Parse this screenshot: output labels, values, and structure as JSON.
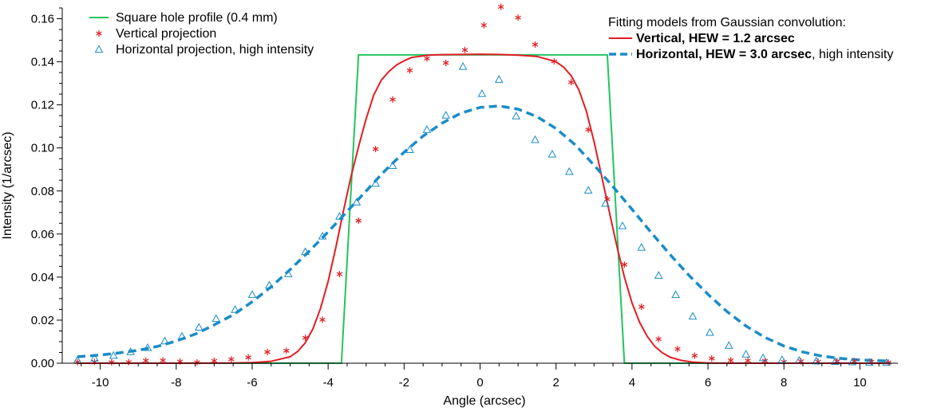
{
  "chart_data": {
    "type": "line",
    "xlabel": "Angle (arcsec)",
    "ylabel": "Intensity (1/arcsec)",
    "xlim": [
      -11.0,
      11.0
    ],
    "ylim": [
      0.0,
      0.165
    ],
    "x_major_ticks": [
      -10,
      -8,
      -6,
      -4,
      -2,
      0,
      2,
      4,
      6,
      8,
      10
    ],
    "y_major_ticks": [
      0.0,
      0.02,
      0.04,
      0.06,
      0.08,
      0.1,
      0.12,
      0.14,
      0.16
    ],
    "x_tick_labels": [
      "-10",
      "-8",
      "-6",
      "-4",
      "-2",
      "0",
      "2",
      "4",
      "6",
      "8",
      "10"
    ],
    "y_tick_labels": [
      "0.00",
      "0.02",
      "0.04",
      "0.06",
      "0.08",
      "0.10",
      "0.12",
      "0.14",
      "0.16"
    ],
    "colors": {
      "square": "#22c55e",
      "vertical": "#e11d24",
      "horizontal": "#1a8cc8"
    },
    "legend_left": {
      "placement": "top-left",
      "entries": [
        {
          "label": "Square hole profile (0.4 mm)",
          "marker": "line",
          "color": "#22c55e"
        },
        {
          "label": "Vertical projection",
          "marker": "asterisk",
          "color": "#e11d24"
        },
        {
          "label": "Horizontal projection, high intensity",
          "marker": "triangle",
          "color": "#1a8cc8"
        }
      ]
    },
    "legend_right": {
      "placement": "top-right",
      "title": "Fitting models from Gaussian convolution:",
      "entries": [
        {
          "bold": "Vertical, HEW = 1.2 arcsec",
          "rest": "",
          "style": "solid",
          "color": "#e11d24"
        },
        {
          "bold": "Horizontal, HEW = 3.0 arcsec",
          "rest": ", high intensity",
          "style": "dashed",
          "color": "#1a8cc8"
        }
      ]
    },
    "series": [
      {
        "name": "Square hole profile (0.4 mm)",
        "kind": "line",
        "x": [
          -10.6,
          -3.65,
          -3.2,
          3.35,
          3.8,
          10.8
        ],
        "y": [
          0.0,
          0.0,
          0.1432,
          0.1432,
          0.0,
          0.0
        ]
      },
      {
        "name": "Vertical, HEW = 1.2 arcsec",
        "kind": "line",
        "x": [
          -10.6,
          -8.0,
          -6.5,
          -6.0,
          -5.5,
          -5.0,
          -4.8,
          -4.6,
          -4.4,
          -4.2,
          -4.0,
          -3.8,
          -3.6,
          -3.4,
          -3.2,
          -3.0,
          -2.8,
          -2.6,
          -2.4,
          -2.2,
          -2.0,
          -1.8,
          -1.6,
          -1.4,
          -1.2,
          -1.0,
          -0.5,
          0.0,
          0.5,
          1.0,
          1.5,
          2.0,
          2.2,
          2.4,
          2.6,
          2.8,
          3.0,
          3.2,
          3.4,
          3.6,
          3.8,
          4.0,
          4.2,
          4.4,
          4.6,
          4.8,
          5.0,
          5.3,
          5.6,
          6.0,
          6.5,
          7.0,
          8.0,
          9.0,
          10.8
        ],
        "y": [
          0.0,
          0.0,
          0.0001,
          0.0003,
          0.0009,
          0.003,
          0.0055,
          0.0095,
          0.016,
          0.0255,
          0.038,
          0.0535,
          0.0705,
          0.0865,
          0.1005,
          0.1135,
          0.1245,
          0.1315,
          0.1355,
          0.1385,
          0.1405,
          0.142,
          0.1425,
          0.143,
          0.1432,
          0.1433,
          0.1434,
          0.1435,
          0.1434,
          0.1431,
          0.1425,
          0.14,
          0.1375,
          0.1335,
          0.127,
          0.117,
          0.103,
          0.087,
          0.0705,
          0.0545,
          0.04,
          0.028,
          0.019,
          0.0125,
          0.0078,
          0.0048,
          0.0028,
          0.0013,
          0.0005,
          0.0001,
          0.0,
          0.0,
          0.0,
          0.0,
          0.0
        ]
      },
      {
        "name": "Horizontal, HEW = 3.0 arcsec",
        "kind": "dashed",
        "x": [
          -10.6,
          -10.0,
          -9.5,
          -9.0,
          -8.5,
          -8.0,
          -7.5,
          -7.0,
          -6.5,
          -6.0,
          -5.5,
          -5.0,
          -4.5,
          -4.0,
          -3.5,
          -3.0,
          -2.5,
          -2.0,
          -1.5,
          -1.0,
          -0.5,
          0.0,
          0.5,
          1.0,
          1.5,
          2.0,
          2.5,
          3.0,
          3.5,
          4.0,
          4.5,
          5.0,
          5.5,
          6.0,
          6.5,
          7.0,
          7.5,
          8.0,
          8.5,
          9.0,
          9.5,
          10.0,
          10.8
        ],
        "y": [
          0.003,
          0.0038,
          0.0048,
          0.006,
          0.0078,
          0.0103,
          0.0135,
          0.0178,
          0.0225,
          0.0285,
          0.0355,
          0.0435,
          0.052,
          0.061,
          0.0705,
          0.08,
          0.0895,
          0.098,
          0.1055,
          0.1115,
          0.1162,
          0.1188,
          0.1195,
          0.118,
          0.1145,
          0.109,
          0.1015,
          0.092,
          0.082,
          0.0715,
          0.0608,
          0.0505,
          0.0408,
          0.032,
          0.024,
          0.0173,
          0.012,
          0.008,
          0.0052,
          0.0033,
          0.0022,
          0.0015,
          0.001
        ]
      },
      {
        "name": "Vertical projection",
        "kind": "asterisk",
        "x": [
          -10.6,
          -10.15,
          -9.7,
          -9.25,
          -8.8,
          -8.35,
          -7.9,
          -7.45,
          -7.0,
          -6.55,
          -6.1,
          -5.6,
          -5.1,
          -4.6,
          -4.15,
          -3.7,
          -3.2,
          -2.75,
          -2.3,
          -1.85,
          -1.4,
          -0.9,
          -0.4,
          0.1,
          0.55,
          1.0,
          1.45,
          1.95,
          2.4,
          2.85,
          3.35,
          3.8,
          4.25,
          4.7,
          5.2,
          5.65,
          6.1,
          6.6,
          7.05,
          7.5,
          8.0,
          8.45,
          8.9,
          9.4,
          9.85,
          10.3,
          10.75
        ],
        "y": [
          0.0005,
          0.0006,
          0.0004,
          0.0005,
          0.0012,
          0.0013,
          0.0008,
          0.0004,
          0.0011,
          0.0018,
          0.0027,
          0.0052,
          0.0058,
          0.0118,
          0.0202,
          0.0414,
          0.0662,
          0.0995,
          0.1225,
          0.136,
          0.1415,
          0.1395,
          0.1455,
          0.157,
          0.1655,
          0.1605,
          0.148,
          0.1402,
          0.1305,
          0.1085,
          0.0762,
          0.0458,
          0.0262,
          0.0112,
          0.0066,
          0.0035,
          0.0022,
          0.0013,
          0.0012,
          0.0011,
          0.0006,
          0.0009,
          0.0007,
          0.0009,
          0.0009,
          0.0007,
          0.0003
        ]
      },
      {
        "name": "Horizontal projection, high intensity",
        "kind": "triangle",
        "x": [
          -10.6,
          -10.15,
          -9.65,
          -9.2,
          -8.75,
          -8.3,
          -7.85,
          -7.4,
          -6.95,
          -6.45,
          -6.0,
          -5.55,
          -5.05,
          -4.6,
          -4.15,
          -3.7,
          -3.25,
          -2.75,
          -2.3,
          -1.85,
          -1.4,
          -0.9,
          -0.45,
          0.05,
          0.5,
          0.95,
          1.45,
          1.9,
          2.35,
          2.85,
          3.3,
          3.75,
          4.25,
          4.7,
          5.15,
          5.6,
          6.05,
          6.55,
          7.0,
          7.45,
          7.95,
          8.4,
          8.85,
          9.35,
          9.8,
          10.25,
          10.7
        ],
        "y": [
          0.0014,
          0.0023,
          0.0036,
          0.0053,
          0.0072,
          0.0103,
          0.0125,
          0.0167,
          0.0207,
          0.0249,
          0.0319,
          0.0362,
          0.0415,
          0.0518,
          0.059,
          0.0682,
          0.0748,
          0.0835,
          0.0918,
          0.0992,
          0.1085,
          0.1152,
          0.1378,
          0.1252,
          0.1318,
          0.1148,
          0.1038,
          0.0971,
          0.089,
          0.0803,
          0.0742,
          0.0638,
          0.0538,
          0.0408,
          0.0318,
          0.0218,
          0.0143,
          0.0082,
          0.0042,
          0.0025,
          0.0016,
          0.0013,
          0.001,
          0.0008,
          0.0006,
          0.0004,
          0.0003
        ]
      }
    ]
  }
}
